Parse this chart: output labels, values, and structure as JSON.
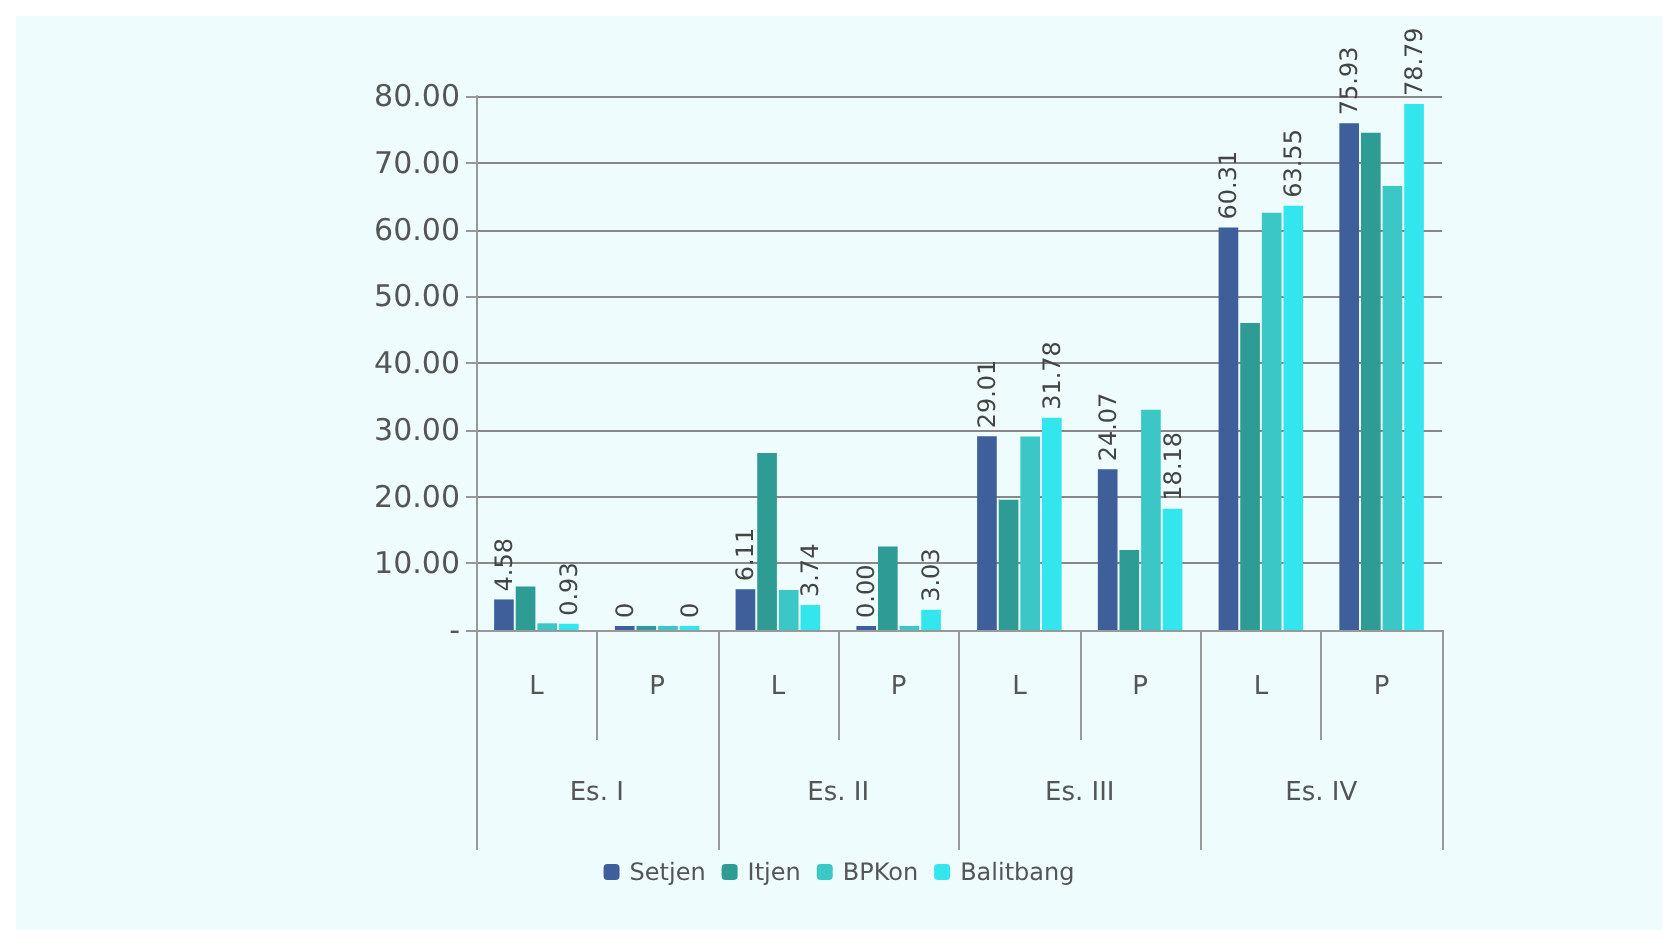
{
  "chart_data": {
    "type": "bar",
    "categories": [
      "L",
      "P",
      "L",
      "P",
      "L",
      "P",
      "L",
      "P"
    ],
    "annotations": [
      "Es. I",
      "Es. II",
      "Es. III",
      "Es. IV"
    ],
    "series": [
      {
        "name": "Setjen",
        "color": "#3f5f9a",
        "values": [
          4.58,
          0,
          6.11,
          0,
          29.01,
          24.07,
          60.31,
          75.93
        ],
        "value_labels": [
          "4.58",
          "0",
          "6.11",
          "0.00",
          "29.01",
          "24.07",
          "60.31",
          "75.93"
        ]
      },
      {
        "name": "Itjen",
        "color": "#2e9c94",
        "values": [
          6.5,
          0,
          26.5,
          12.5,
          19.5,
          12,
          46,
          74.5
        ]
      },
      {
        "name": "BPKon",
        "color": "#3cc7c7",
        "values": [
          1,
          0,
          6,
          0,
          29,
          33,
          62.5,
          66.5
        ]
      },
      {
        "name": "Balitbang",
        "color": "#33e6ee",
        "values": [
          0.93,
          0,
          3.74,
          3.03,
          31.78,
          18.18,
          63.55,
          78.79
        ],
        "value_labels": [
          "0.93",
          "0",
          "3.74",
          "3.03",
          "31.78",
          "18.18",
          "63.55",
          "78.79"
        ]
      }
    ],
    "ylim": [
      0,
      80
    ],
    "yticks": [
      {
        "value": 0,
        "label": "-"
      },
      {
        "value": 10,
        "label": "10.00"
      },
      {
        "value": 20,
        "label": "20.00"
      },
      {
        "value": 30,
        "label": "30.00"
      },
      {
        "value": 40,
        "label": "40.00"
      },
      {
        "value": 50,
        "label": "50.00"
      },
      {
        "value": 60,
        "label": "60.00"
      },
      {
        "value": 70,
        "label": "70.00"
      },
      {
        "value": 80,
        "label": "80.00"
      }
    ],
    "grid": "y",
    "legend": "bottom"
  }
}
